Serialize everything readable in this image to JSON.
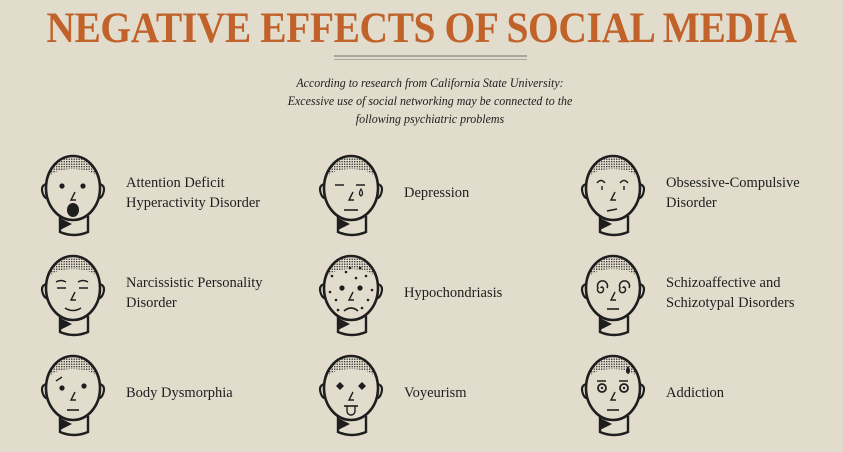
{
  "title": "NEGATIVE EFFECTS OF SOCIAL MEDIA",
  "subtitle_lines": [
    "According to research from California State University:",
    "Excessive use of social networking may be connected to the",
    "following psychiatric problems"
  ],
  "colors": {
    "title": "#c0622a",
    "background": "#e2dccd",
    "ink": "#1e1e1e"
  },
  "items": [
    {
      "label": "Attention Deficit Hyperactivity Disorder",
      "face": "surprised"
    },
    {
      "label": "Depression",
      "face": "sad-tear"
    },
    {
      "label": "Obsessive-Compulsive Disorder",
      "face": "raised-brows"
    },
    {
      "label": "Narcissistic Personality Disorder",
      "face": "smug"
    },
    {
      "label": "Hypochondriasis",
      "face": "spotted-frown"
    },
    {
      "label": "Schizoaffective and Schizotypal Disorders",
      "face": "spiral-eyes"
    },
    {
      "label": "Body Dysmorphia",
      "face": "uneven"
    },
    {
      "label": "Voyeurism",
      "face": "tongue-out"
    },
    {
      "label": "Addiction",
      "face": "sweat-drop"
    }
  ]
}
